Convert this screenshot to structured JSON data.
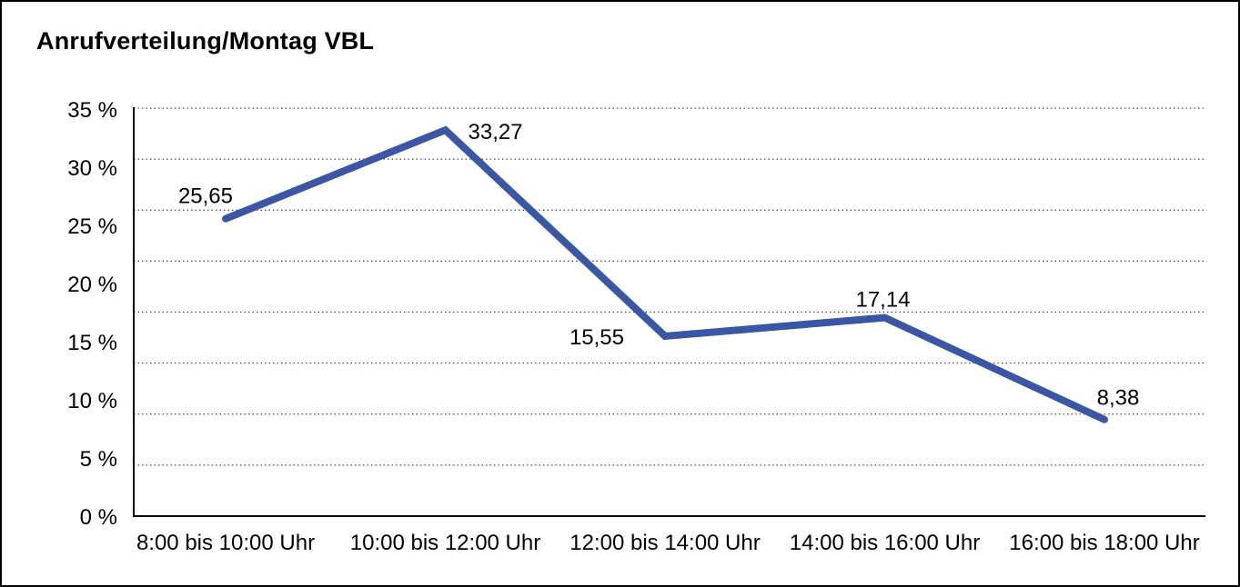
{
  "chart_data": {
    "type": "line",
    "title": "Anrufverteilung/Montag VBL",
    "categories": [
      "8:00 bis 10:00 Uhr",
      "10:00 bis 12:00 Uhr",
      "12:00 bis 14:00 Uhr",
      "14:00 bis 16:00 Uhr",
      "16:00 bis 18:00 Uhr"
    ],
    "values": [
      25.65,
      33.27,
      15.55,
      17.14,
      8.38
    ],
    "value_labels": [
      "25,65",
      "33,27",
      "15,55",
      "17,14",
      "8,38"
    ],
    "label_positions": [
      "above-left",
      "right",
      "left",
      "above",
      "above-right"
    ],
    "xlabel": "",
    "ylabel": "",
    "ylim": [
      0,
      35
    ],
    "y_tick_labels": [
      "35 %",
      "30 %",
      "25 %",
      "20 %",
      "15 %",
      "10 %",
      "5 %",
      "0 %"
    ],
    "y_tick_step_percent": 5,
    "gridlines": {
      "style": "dotted",
      "horizontal_intervals": 8,
      "vertical": "off"
    },
    "legend": "none",
    "colors": {
      "line": "#3A57A5",
      "grid": "#4a4a4a",
      "axis": "#000000",
      "text": "#000000",
      "background": "#ffffff",
      "frame_border": "#000000"
    }
  }
}
